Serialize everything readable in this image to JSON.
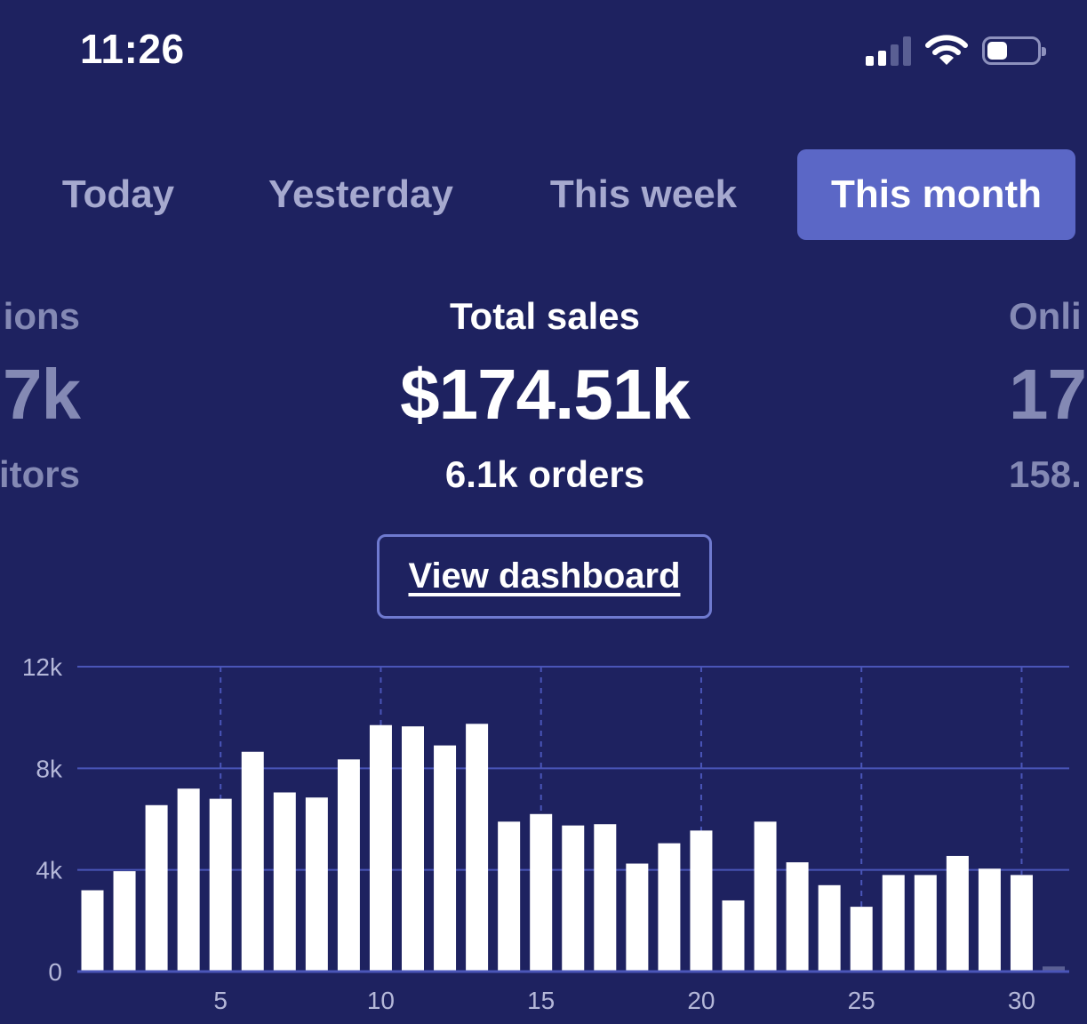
{
  "status_bar": {
    "time": "11:26",
    "signal_bars_active": 2,
    "signal_bars_total": 4,
    "battery_level": 0.4
  },
  "tabs": [
    {
      "label": "Today",
      "active": false
    },
    {
      "label": "Yesterday",
      "active": false
    },
    {
      "label": "This week",
      "active": false
    },
    {
      "label": "This month",
      "active": true
    }
  ],
  "metrics": {
    "left_partial": {
      "label": "ions",
      "value": "7k",
      "sub": "itors"
    },
    "center": {
      "label": "Total sales",
      "value": "$174.51k",
      "sub": "6.1k orders"
    },
    "right_partial": {
      "label": "Onli",
      "value": "17",
      "sub": "158."
    }
  },
  "view_dashboard_label": "View dashboard",
  "colors": {
    "background": "#1e2260",
    "active_tab": "#5b67c6",
    "inactive_text": "#a6a9cf",
    "bars": "#ffffff",
    "gridlines": "#4a55b8",
    "today_marker": "#5a5f93"
  },
  "chart_data": {
    "type": "bar",
    "title": "",
    "xlabel": "",
    "ylabel": "",
    "x": [
      1,
      2,
      3,
      4,
      5,
      6,
      7,
      8,
      9,
      10,
      11,
      12,
      13,
      14,
      15,
      16,
      17,
      18,
      19,
      20,
      21,
      22,
      23,
      24,
      25,
      26,
      27,
      28,
      29,
      30,
      31
    ],
    "values": [
      3200,
      3950,
      6550,
      7200,
      6800,
      8650,
      7050,
      6850,
      8350,
      9700,
      9650,
      8900,
      9750,
      5900,
      6200,
      5750,
      5800,
      4250,
      5050,
      5550,
      2800,
      5900,
      4300,
      3400,
      2550,
      3800,
      3800,
      4550,
      4050,
      3800,
      200
    ],
    "ylim": [
      0,
      12000
    ],
    "yticks": [
      {
        "value": 0,
        "label": "0"
      },
      {
        "value": 4000,
        "label": "4k"
      },
      {
        "value": 8000,
        "label": "8k"
      },
      {
        "value": 12000,
        "label": "12k"
      }
    ],
    "xticks": [
      {
        "value": 5,
        "label": "5"
      },
      {
        "value": 10,
        "label": "10"
      },
      {
        "value": 15,
        "label": "15"
      },
      {
        "value": 20,
        "label": "20"
      },
      {
        "value": 25,
        "label": "25"
      },
      {
        "value": 30,
        "label": "30"
      }
    ],
    "grid": true,
    "legend": "none"
  }
}
